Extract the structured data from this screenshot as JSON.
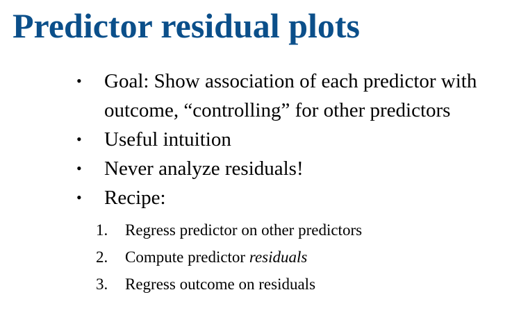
{
  "slide": {
    "title": "Predictor residual plots",
    "title_color": "#0b4f8a",
    "bullets": [
      {
        "text": "Goal: Show association of each predictor with outcome, “controlling” for other predictors"
      },
      {
        "text": "Useful intuition"
      },
      {
        "text": "Never analyze residuals!"
      },
      {
        "text": "Recipe:"
      }
    ],
    "bullet_glyph": "•",
    "steps": [
      {
        "number": "1.",
        "text": "Regress predictor on other predictors",
        "emphasis": ""
      },
      {
        "number": "2.",
        "text": "Compute predictor ",
        "emphasis": "residuals"
      },
      {
        "number": "3.",
        "text": "Regress outcome on residuals",
        "emphasis": ""
      }
    ]
  }
}
